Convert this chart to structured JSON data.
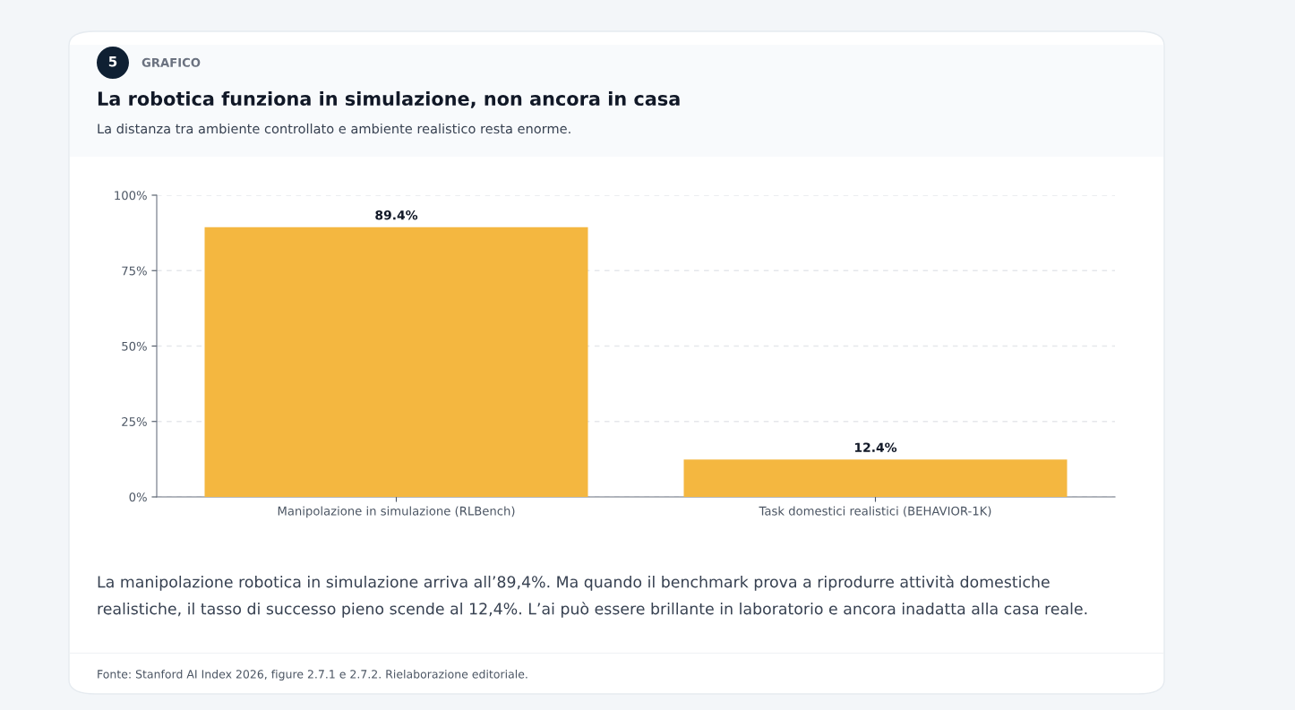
{
  "chart_data": {
    "type": "bar",
    "title": "La robotica funziona in simulazione, non ancora in casa",
    "subtitle": "La distanza tra ambiente controllato e ambiente realistico resta enorme.",
    "categories": [
      "Manipolazione in simulazione (RLBench)",
      "Task domestici realistici (BEHAVIOR-1K)"
    ],
    "values": [
      89.4,
      12.4
    ],
    "value_labels": [
      "89.4%",
      "12.4%"
    ],
    "color": "#f4b740",
    "ylim": [
      0,
      100
    ],
    "yticks": [
      {
        "value": 0,
        "label": "0%"
      },
      {
        "value": 25,
        "label": "25%"
      },
      {
        "value": 50,
        "label": "50%"
      },
      {
        "value": 75,
        "label": "75%"
      },
      {
        "value": 100,
        "label": "100%"
      }
    ],
    "grid": "y",
    "annotations": [
      "5",
      "GRAFICO",
      "La manipolazione robotica in simulazione arriva all’89,4%. Ma quando il benchmark prova a riprodurre attività domestiche realistiche, il tasso di successo pieno scende al 12,4%. L’ai può essere brillante in laboratorio e ancora inadatta alla casa reale.",
      "Fonte: Stanford AI Index 2026, figure 2.7.1 e 2.7.2. Rielaborazione editoriale."
    ]
  }
}
